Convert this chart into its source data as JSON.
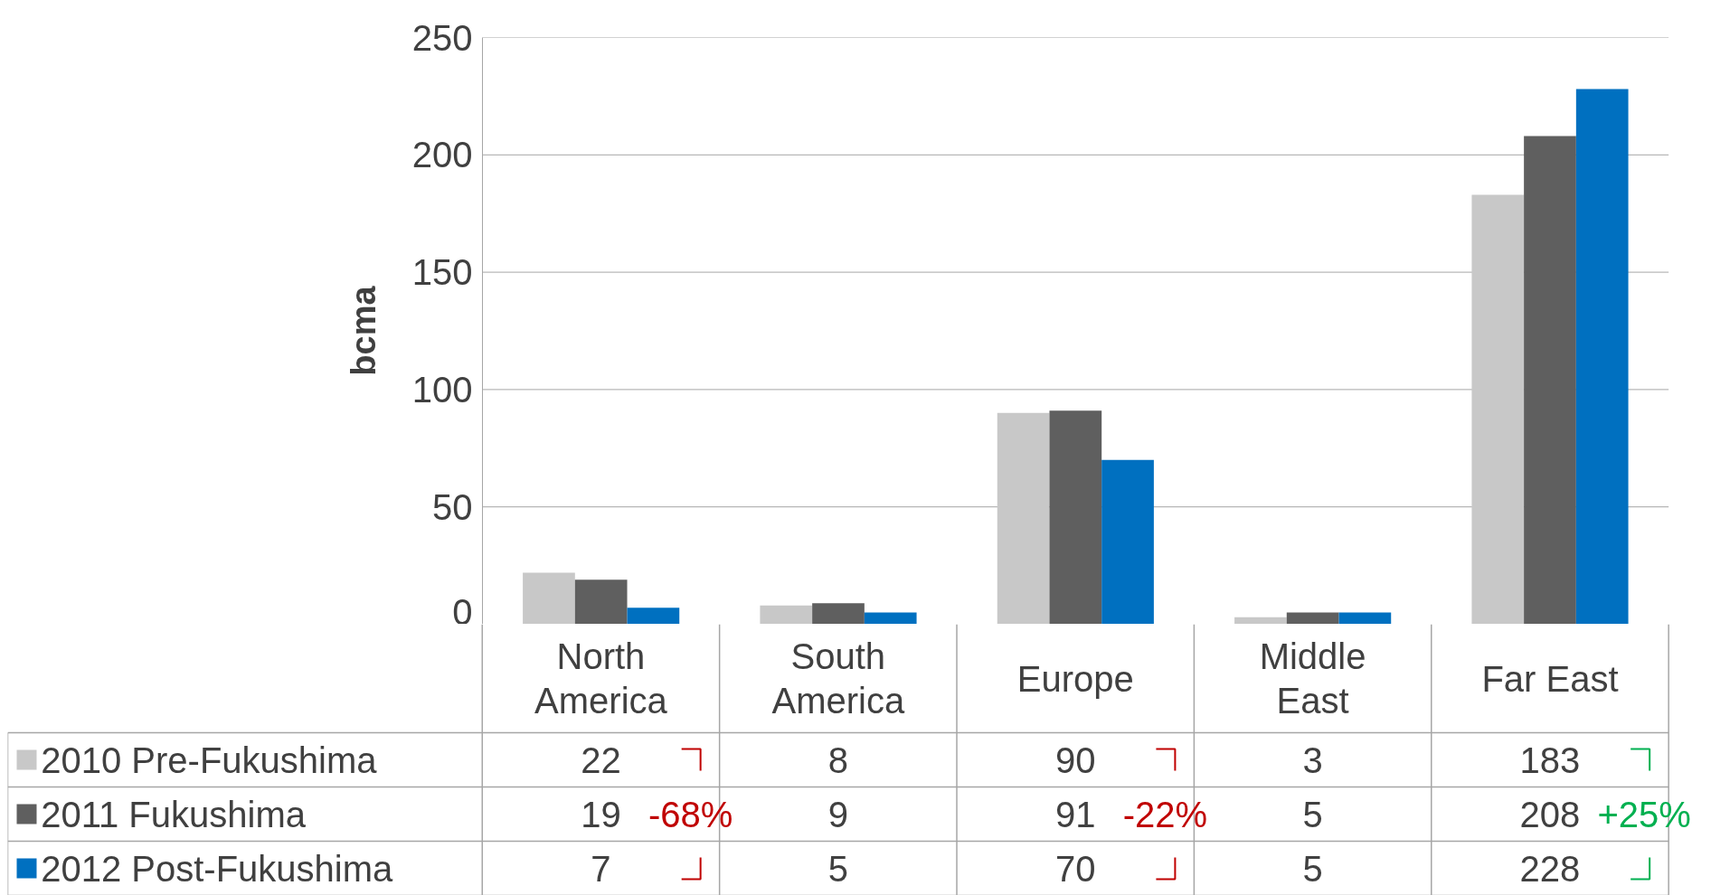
{
  "chart_data": {
    "type": "bar",
    "ylabel": "bcma",
    "categories": [
      "North America",
      "South America",
      "Europe",
      "Middle East",
      "Far East"
    ],
    "series": [
      {
        "name": "2010 Pre-Fukushima",
        "color": "#c8c8c8",
        "values": [
          22,
          8,
          90,
          3,
          183
        ]
      },
      {
        "name": "2011 Fukushima",
        "color": "#5f5f5f",
        "values": [
          19,
          9,
          91,
          5,
          208
        ]
      },
      {
        "name": "2012 Post-Fukushima",
        "color": "#0070c0",
        "values": [
          7,
          5,
          70,
          5,
          228
        ]
      }
    ],
    "ylim": [
      0,
      250
    ],
    "yticks": [
      0,
      50,
      100,
      150,
      200,
      250
    ],
    "grid": "y",
    "legend": "left",
    "data_labels": true,
    "annotations": [
      "-68%",
      "-22%",
      "+25%"
    ]
  }
}
